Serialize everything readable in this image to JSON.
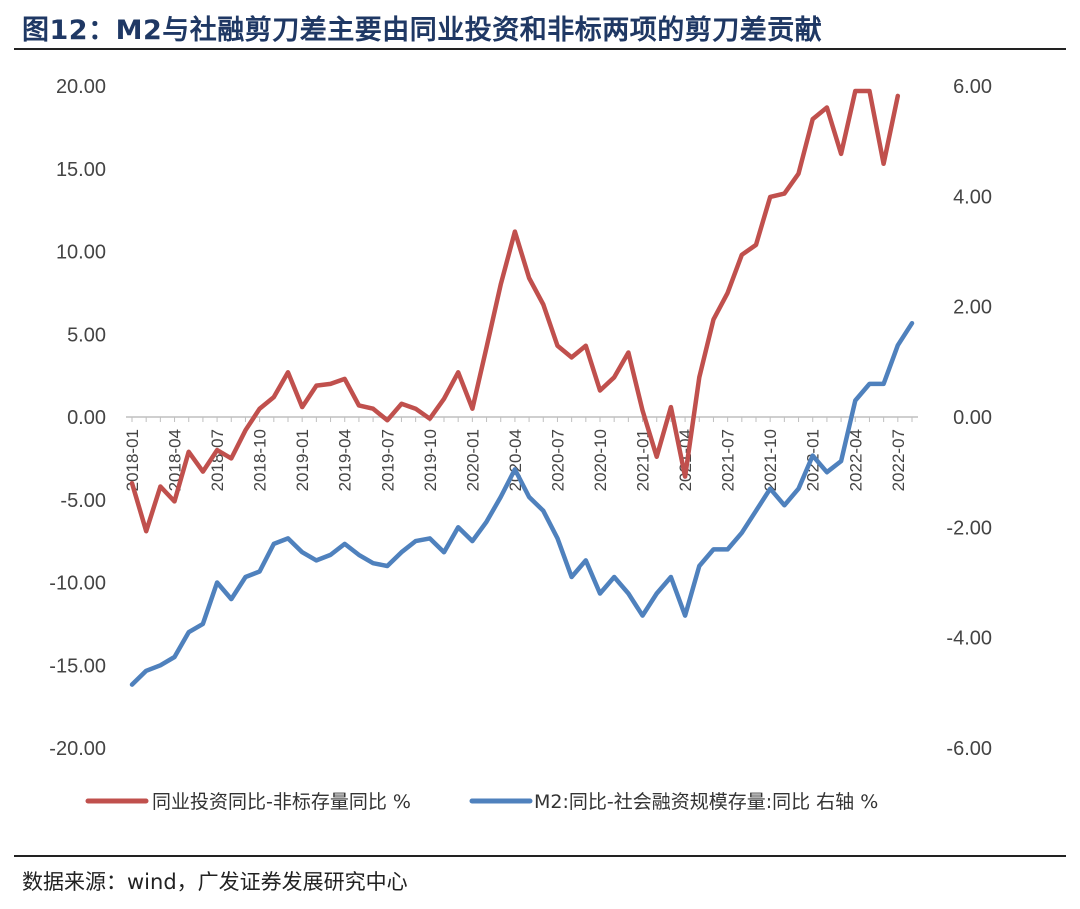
{
  "title": "图12：M2与社融剪刀差主要由同业投资和非标两项的剪刀差贡献",
  "source": "数据来源：wind，广发证券发展研究中心",
  "chart_data": {
    "type": "line",
    "left_axis": {
      "ylim": [
        -20,
        20
      ],
      "ticks": [
        "20.00",
        "15.00",
        "10.00",
        "5.00",
        "0.00",
        "-5.00",
        "-10.00",
        "-15.00",
        "-20.00"
      ]
    },
    "right_axis": {
      "ylim": [
        -6,
        6
      ],
      "ticks": [
        "6.00",
        "4.00",
        "2.00",
        "0.00",
        "-2.00",
        "-4.00",
        "-6.00"
      ]
    },
    "x_tick_labels": [
      "2018-01",
      "2018-04",
      "2018-07",
      "2018-10",
      "2019-01",
      "2019-04",
      "2019-07",
      "2019-10",
      "2020-01",
      "2020-04",
      "2020-07",
      "2020-10",
      "2021-01",
      "2021-04",
      "2021-07",
      "2021-10",
      "2022-01",
      "2022-04",
      "2022-07"
    ],
    "legend_position": "bottom",
    "series": [
      {
        "name": "同业投资同比-非标存量同比 %",
        "axis": "left",
        "color": "#c0504d",
        "values": [
          -4.0,
          -6.9,
          -4.2,
          -5.1,
          -2.1,
          -3.3,
          -2.0,
          -2.5,
          -0.8,
          0.5,
          1.2,
          2.7,
          0.6,
          1.9,
          2.0,
          2.3,
          0.7,
          0.5,
          -0.2,
          0.8,
          0.5,
          -0.1,
          1.1,
          2.7,
          0.5,
          4.2,
          8.0,
          11.2,
          8.4,
          6.8,
          4.3,
          3.6,
          4.3,
          1.6,
          2.4,
          3.9,
          0.4,
          -2.4,
          0.6,
          -3.6,
          2.4,
          5.9,
          7.5,
          9.8,
          10.4,
          13.3,
          13.5,
          14.7,
          18.0,
          18.7,
          15.9,
          19.7,
          19.7,
          15.3,
          19.4
        ],
        "x_start": 0
      },
      {
        "name": "M2:同比-社会融资规模存量:同比  右轴 %",
        "axis": "right",
        "color": "#4f81bd",
        "values": [
          -4.85,
          -4.6,
          -4.5,
          -4.35,
          -3.9,
          -3.75,
          -3.0,
          -3.3,
          -2.9,
          -2.8,
          -2.3,
          -2.2,
          -2.45,
          -2.6,
          -2.5,
          -2.3,
          -2.5,
          -2.65,
          -2.7,
          -2.45,
          -2.25,
          -2.2,
          -2.45,
          -2.0,
          -2.25,
          -1.9,
          -1.45,
          -0.95,
          -1.45,
          -1.7,
          -2.2,
          -2.9,
          -2.6,
          -3.2,
          -2.9,
          -3.2,
          -3.6,
          -3.2,
          -2.9,
          -3.6,
          -2.7,
          -2.4,
          -2.4,
          -2.1,
          -1.7,
          -1.3,
          -1.6,
          -1.3,
          -0.7,
          -1.0,
          -0.8,
          0.3,
          0.6,
          0.6,
          1.3,
          1.7
        ],
        "x_start": 0
      }
    ]
  }
}
